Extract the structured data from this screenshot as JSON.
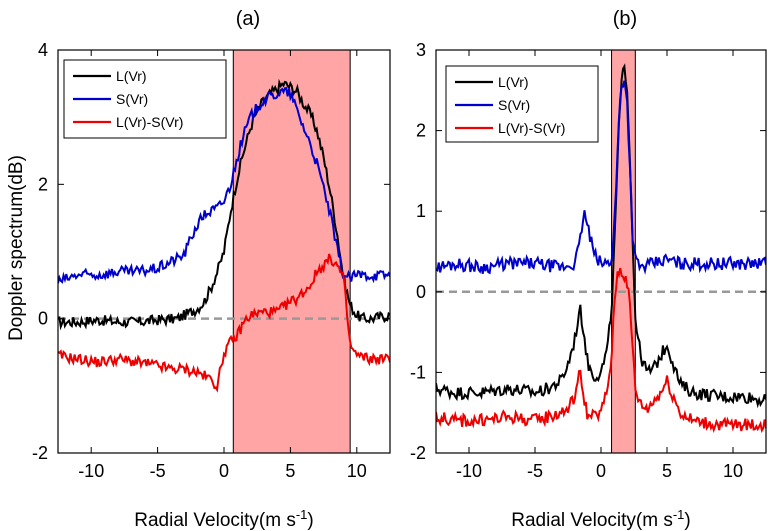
{
  "figure": {
    "ylabel": "Doppler spectrum(dB)"
  },
  "chart_data": [
    {
      "type": "line",
      "panel_title": "(a)",
      "xlabel": "Radial Velocity(m s",
      "xlabel_sup": "-1",
      "xlabel_tail": ")",
      "xlim": [
        -12.5,
        12.5
      ],
      "ylim": [
        -2,
        4
      ],
      "xticks": [
        -10,
        -5,
        0,
        5,
        10
      ],
      "yticks": [
        -2,
        0,
        2,
        4
      ],
      "xtick_labels": [
        "-10",
        "-5",
        "0",
        "5",
        "10"
      ],
      "ytick_labels": [
        "-2",
        "0",
        "2",
        "4"
      ],
      "shaded_region": {
        "x0": 0.7,
        "x1": 9.5,
        "color": "#ffa5a5"
      },
      "reference_line": {
        "y": 0,
        "color": "#999999",
        "style": "dashed"
      },
      "legend_position": "top-left",
      "grid": false,
      "series": [
        {
          "name": "L(Vr)",
          "color": "#000000",
          "x": [
            -12.5,
            -11,
            -9.5,
            -8,
            -6.5,
            -5,
            -3.5,
            -2,
            -1.5,
            -1,
            -0.5,
            0,
            0.5,
            1,
            1.5,
            2,
            2.5,
            3,
            3.5,
            4,
            4.5,
            5,
            5.5,
            6,
            6.5,
            7,
            7.5,
            8,
            8.5,
            9,
            9.5,
            10,
            10.5,
            11,
            12.5
          ],
          "y": [
            -0.05,
            -0.05,
            -0.02,
            -0.05,
            -0.05,
            -0.02,
            0.0,
            0.15,
            0.25,
            0.45,
            0.7,
            1.0,
            1.6,
            2.1,
            2.5,
            2.85,
            3.1,
            3.25,
            3.35,
            3.42,
            3.5,
            3.45,
            3.38,
            3.2,
            3.05,
            2.8,
            2.4,
            1.9,
            1.3,
            0.6,
            0.2,
            0.05,
            0.0,
            0.0,
            0.05
          ]
        },
        {
          "name": "S(Vr)",
          "color": "#0000cc",
          "x": [
            -12.5,
            -11,
            -9.5,
            -8,
            -6.5,
            -5,
            -4,
            -3,
            -2.5,
            -2,
            -1.5,
            -1,
            -0.5,
            0,
            0.5,
            1,
            1.5,
            2,
            2.5,
            3,
            3.5,
            4,
            4.5,
            5,
            5.5,
            6,
            6.5,
            7,
            7.5,
            8,
            8.5,
            9,
            9.5,
            10,
            11,
            12.5
          ],
          "y": [
            0.55,
            0.65,
            0.65,
            0.7,
            0.7,
            0.75,
            0.85,
            0.95,
            1.2,
            1.4,
            1.55,
            1.6,
            1.65,
            1.75,
            2.0,
            2.4,
            2.75,
            3.0,
            3.15,
            3.25,
            3.3,
            3.35,
            3.38,
            3.35,
            3.1,
            2.85,
            2.6,
            2.3,
            1.95,
            1.55,
            1.05,
            0.65,
            0.6,
            0.65,
            0.65,
            0.65
          ]
        },
        {
          "name": "L(Vr)-S(Vr)",
          "color": "#ee0000",
          "x": [
            -12.5,
            -11,
            -9.5,
            -8,
            -6.5,
            -5,
            -4,
            -3,
            -2,
            -1,
            -0.5,
            0,
            0.5,
            1,
            1.5,
            2,
            3,
            4,
            5,
            5.5,
            6,
            6.5,
            7,
            7.5,
            8,
            8.5,
            9,
            9.5,
            10,
            11,
            12.5
          ],
          "y": [
            -0.55,
            -0.6,
            -0.65,
            -0.6,
            -0.65,
            -0.7,
            -0.75,
            -0.75,
            -0.8,
            -0.9,
            -1.0,
            -0.5,
            -0.35,
            -0.25,
            -0.05,
            0.05,
            0.1,
            0.1,
            0.25,
            0.3,
            0.4,
            0.5,
            0.7,
            0.8,
            0.9,
            0.8,
            0.6,
            -0.4,
            -0.55,
            -0.6,
            -0.6
          ]
        }
      ]
    },
    {
      "type": "line",
      "panel_title": "(b)",
      "xlabel": "Radial Velocity(m s",
      "xlabel_sup": "-1",
      "xlabel_tail": ")",
      "xlim": [
        -12.5,
        12.5
      ],
      "ylim": [
        -2,
        3
      ],
      "xticks": [
        -10,
        -5,
        0,
        5,
        10
      ],
      "yticks": [
        -2,
        -1,
        0,
        1,
        2,
        3
      ],
      "xtick_labels": [
        "-10",
        "-5",
        "0",
        "5",
        "10"
      ],
      "ytick_labels": [
        "-2",
        "-1",
        "0",
        "1",
        "2",
        "3"
      ],
      "shaded_region": {
        "x0": 0.8,
        "x1": 2.6,
        "color": "#ffa5a5"
      },
      "reference_line": {
        "y": 0,
        "color": "#999999",
        "style": "dashed"
      },
      "legend_position": "top-left",
      "grid": false,
      "series": [
        {
          "name": "L(Vr)",
          "color": "#000000",
          "x": [
            -12.5,
            -11,
            -9,
            -7,
            -5,
            -4,
            -3,
            -2.5,
            -2,
            -1.6,
            -1.3,
            -1,
            -0.5,
            0,
            0.5,
            0.8,
            1.0,
            1.2,
            1.4,
            1.6,
            1.8,
            2.0,
            2.2,
            2.4,
            2.6,
            3,
            3.5,
            4,
            4.5,
            5,
            5.5,
            6,
            7,
            9,
            11,
            12.5
          ],
          "y": [
            -1.2,
            -1.25,
            -1.25,
            -1.2,
            -1.25,
            -1.2,
            -1.1,
            -0.9,
            -0.6,
            -0.2,
            -0.5,
            -0.9,
            -1.05,
            -1.0,
            -0.7,
            -0.2,
            0.5,
            1.4,
            2.2,
            2.65,
            2.8,
            2.5,
            1.6,
            0.6,
            -0.3,
            -0.8,
            -1.0,
            -0.95,
            -0.8,
            -0.65,
            -0.9,
            -1.15,
            -1.25,
            -1.3,
            -1.3,
            -1.35
          ]
        },
        {
          "name": "S(Vr)",
          "color": "#0000cc",
          "x": [
            -12.5,
            -11,
            -9,
            -7,
            -5,
            -3,
            -2,
            -1.6,
            -1.3,
            -1,
            -0.5,
            0,
            0.5,
            0.8,
            1.0,
            1.2,
            1.4,
            1.6,
            1.8,
            2.0,
            2.2,
            2.4,
            2.6,
            3,
            4,
            5,
            6,
            7,
            8,
            9,
            10,
            11,
            12.5
          ],
          "y": [
            0.3,
            0.35,
            0.3,
            0.35,
            0.35,
            0.3,
            0.35,
            0.6,
            1.0,
            0.8,
            0.45,
            0.35,
            0.35,
            0.4,
            0.8,
            1.5,
            2.3,
            2.6,
            2.65,
            2.3,
            1.5,
            0.7,
            0.4,
            0.3,
            0.35,
            0.4,
            0.35,
            0.35,
            0.35,
            0.35,
            0.35,
            0.35,
            0.35
          ]
        },
        {
          "name": "L(Vr)-S(Vr)",
          "color": "#ee0000",
          "x": [
            -12.5,
            -11,
            -9,
            -7,
            -5,
            -4,
            -3,
            -2.5,
            -2,
            -1.6,
            -1.3,
            -1,
            -0.5,
            0,
            0.5,
            0.8,
            1.0,
            1.2,
            1.4,
            1.6,
            1.8,
            2.0,
            2.2,
            2.4,
            2.6,
            3,
            3.5,
            4,
            4.5,
            5,
            5.5,
            6,
            7,
            9,
            11,
            12.5
          ],
          "y": [
            -1.55,
            -1.6,
            -1.6,
            -1.55,
            -1.6,
            -1.55,
            -1.5,
            -1.45,
            -1.3,
            -1.0,
            -1.3,
            -1.55,
            -1.55,
            -1.5,
            -1.2,
            -0.8,
            -0.2,
            0.2,
            0.28,
            0.25,
            0.2,
            0.1,
            -0.2,
            -0.7,
            -1.2,
            -1.4,
            -1.45,
            -1.35,
            -1.25,
            -1.1,
            -1.3,
            -1.5,
            -1.6,
            -1.65,
            -1.65,
            -1.65
          ]
        }
      ]
    }
  ]
}
